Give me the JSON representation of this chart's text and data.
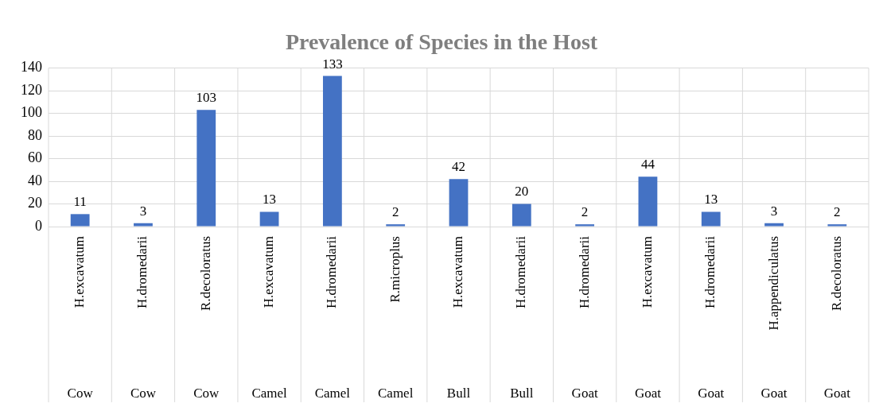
{
  "chart_data": {
    "type": "bar",
    "title": "Prevalence of Species in the Host",
    "categories": [
      "H.excavatum\nCow",
      "H.dromedarii\nCow",
      "R.decoloratus\nCow",
      "H.excavatum\nCamel",
      "H.dromedarii\nCamel",
      "R.microplus\nCamel",
      "H.excavatum\nBull",
      "H.dromedarii\nBull",
      "H.dromedarii\nGoat",
      "H.excavatum\nGoat",
      "H.dromedarii\nGoat",
      "H.appendiculatus\nGoat",
      "R.decoloratus\nGoat"
    ],
    "values": [
      11,
      3,
      103,
      13,
      133,
      2,
      42,
      20,
      2,
      44,
      13,
      3,
      2
    ],
    "color": "#4472c4",
    "ylim": [
      0,
      140
    ],
    "yticks": [
      0,
      20,
      40,
      60,
      80,
      100,
      120,
      140
    ],
    "grid": true,
    "data_labels": true,
    "legend": false
  }
}
